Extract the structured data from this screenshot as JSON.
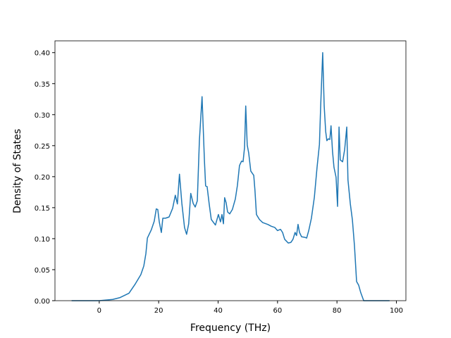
{
  "chart_data": {
    "type": "line",
    "x_label": "Frequency (THz)",
    "y_label": "Density of States",
    "xlim": [
      -14.9,
      103.2
    ],
    "ylim": [
      0,
      0.419
    ],
    "xticks": [
      0,
      20,
      40,
      60,
      80,
      100
    ],
    "yticks": [
      {
        "value": 0,
        "label": "0.00"
      },
      {
        "value": 0.05,
        "label": "0.05"
      },
      {
        "value": 0.1,
        "label": "0.10"
      },
      {
        "value": 0.15,
        "label": "0.15"
      },
      {
        "value": 0.2,
        "label": "0.20"
      },
      {
        "value": 0.25,
        "label": "0.25"
      },
      {
        "value": 0.3,
        "label": "0.30"
      },
      {
        "value": 0.35,
        "label": "0.35"
      },
      {
        "value": 0.4,
        "label": "0.40"
      }
    ],
    "grid": false,
    "series": [
      {
        "color": "#1f77b4",
        "x": [
          -9.3,
          0,
          4.5,
          7,
          10,
          12,
          14,
          15,
          15.7,
          16.2,
          17.5,
          18.5,
          19.2,
          19.7,
          20.2,
          20.9,
          21.4,
          22.3,
          23.5,
          24.7,
          25.6,
          26.3,
          27,
          27.8,
          28.7,
          29.4,
          30.1,
          30.8,
          31.6,
          32.3,
          33,
          33.7,
          34.6,
          35.4,
          35.8,
          36.3,
          37,
          37.7,
          39.1,
          40.1,
          40.8,
          41.3,
          41.8,
          42.2,
          42.7,
          43.2,
          43.9,
          44.8,
          45.8,
          46.5,
          47.2,
          47.9,
          48.4,
          48.9,
          49.3,
          49.8,
          50.3,
          51,
          52,
          52.4,
          52.9,
          53.9,
          55,
          56.7,
          57.9,
          59.1,
          60,
          61,
          61.7,
          62.4,
          63.6,
          64.5,
          65.2,
          65.9,
          66.4,
          66.9,
          67.4,
          68.1,
          69.3,
          69.8,
          70.5,
          71.4,
          72.4,
          73.3,
          74.1,
          74.5,
          75.2,
          75.7,
          76.2,
          76.6,
          77.1,
          77.6,
          78,
          78.5,
          79,
          79.7,
          80.2,
          80.7,
          81.1,
          81.9,
          82.6,
          83.3,
          83.7,
          84.5,
          85.2,
          85.9,
          86.6,
          87.3,
          88,
          89,
          97.7
        ],
        "values": [
          0,
          0,
          0.002,
          0.005,
          0.012,
          0.026,
          0.042,
          0.056,
          0.076,
          0.101,
          0.114,
          0.128,
          0.148,
          0.147,
          0.127,
          0.11,
          0.133,
          0.133,
          0.135,
          0.149,
          0.17,
          0.156,
          0.204,
          0.157,
          0.118,
          0.107,
          0.124,
          0.173,
          0.157,
          0.151,
          0.161,
          0.258,
          0.329,
          0.226,
          0.185,
          0.184,
          0.156,
          0.131,
          0.122,
          0.139,
          0.127,
          0.139,
          0.124,
          0.166,
          0.158,
          0.143,
          0.14,
          0.147,
          0.164,
          0.186,
          0.218,
          0.225,
          0.224,
          0.247,
          0.314,
          0.251,
          0.238,
          0.209,
          0.202,
          0.178,
          0.139,
          0.131,
          0.126,
          0.123,
          0.12,
          0.118,
          0.113,
          0.115,
          0.11,
          0.099,
          0.093,
          0.094,
          0.099,
          0.11,
          0.105,
          0.123,
          0.11,
          0.103,
          0.102,
          0.101,
          0.113,
          0.133,
          0.167,
          0.215,
          0.252,
          0.311,
          0.4,
          0.314,
          0.273,
          0.258,
          0.261,
          0.26,
          0.282,
          0.241,
          0.215,
          0.199,
          0.152,
          0.28,
          0.227,
          0.224,
          0.244,
          0.28,
          0.195,
          0.156,
          0.13,
          0.088,
          0.031,
          0.025,
          0.013,
          0,
          0
        ]
      }
    ]
  }
}
